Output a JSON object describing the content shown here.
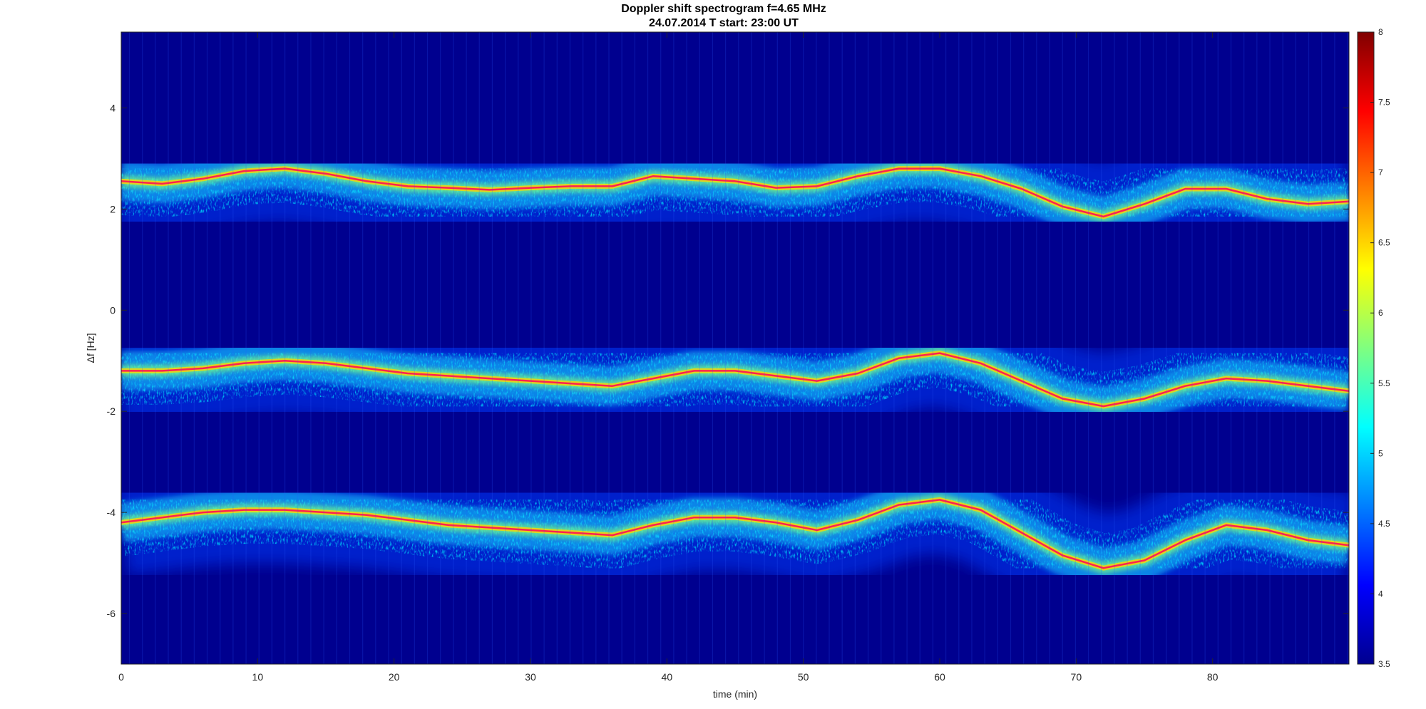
{
  "chart_data": {
    "type": "heatmap",
    "title": "Doppler shift spectrogram f=4.65 MHz",
    "subtitle": "24.07.2014   T start: 23:00 UT",
    "xlabel": "time (min)",
    "ylabel": "Δf [Hz]",
    "xlim": [
      0,
      90
    ],
    "ylim": [
      -7,
      5.5
    ],
    "x_ticks": [
      0,
      10,
      20,
      30,
      40,
      50,
      60,
      70,
      80
    ],
    "y_ticks": [
      -6,
      -4,
      -2,
      0,
      2,
      4
    ],
    "colorbar": {
      "range": [
        3.5,
        8
      ],
      "ticks": [
        3.5,
        4,
        4.5,
        5,
        5.5,
        6,
        6.5,
        7,
        7.5,
        8
      ],
      "colormap": "jet"
    },
    "background_color": "#00008f",
    "series": [
      {
        "x": [
          0,
          3,
          6,
          9,
          12,
          15,
          18,
          21,
          24,
          27,
          30,
          33,
          36,
          39,
          42,
          45,
          48,
          51,
          54,
          57,
          60,
          63,
          66,
          69,
          72,
          75,
          78,
          81,
          84,
          87,
          90
        ],
        "values": [
          2.55,
          2.5,
          2.6,
          2.75,
          2.8,
          2.7,
          2.55,
          2.45,
          2.42,
          2.38,
          2.42,
          2.45,
          2.45,
          2.65,
          2.6,
          2.55,
          2.42,
          2.45,
          2.65,
          2.8,
          2.8,
          2.65,
          2.4,
          2.05,
          1.85,
          2.1,
          2.4,
          2.4,
          2.2,
          2.1,
          2.15
        ]
      },
      {
        "x": [
          0,
          3,
          6,
          9,
          12,
          15,
          18,
          21,
          24,
          27,
          30,
          33,
          36,
          39,
          42,
          45,
          48,
          51,
          54,
          57,
          60,
          63,
          66,
          69,
          72,
          75,
          78,
          81,
          84,
          87,
          90
        ],
        "values": [
          -1.2,
          -1.2,
          -1.15,
          -1.05,
          -1.0,
          -1.05,
          -1.15,
          -1.25,
          -1.3,
          -1.35,
          -1.4,
          -1.45,
          -1.5,
          -1.35,
          -1.2,
          -1.2,
          -1.3,
          -1.4,
          -1.25,
          -0.95,
          -0.85,
          -1.05,
          -1.4,
          -1.75,
          -1.9,
          -1.75,
          -1.5,
          -1.35,
          -1.4,
          -1.5,
          -1.6
        ]
      },
      {
        "x": [
          0,
          3,
          6,
          9,
          12,
          15,
          18,
          21,
          24,
          27,
          30,
          33,
          36,
          39,
          42,
          45,
          48,
          51,
          54,
          57,
          60,
          63,
          66,
          69,
          72,
          75,
          78,
          81,
          84,
          87,
          90
        ],
        "values": [
          -4.2,
          -4.1,
          -4.0,
          -3.95,
          -3.95,
          -4.0,
          -4.05,
          -4.15,
          -4.25,
          -4.3,
          -4.35,
          -4.4,
          -4.45,
          -4.25,
          -4.1,
          -4.1,
          -4.2,
          -4.35,
          -4.15,
          -3.85,
          -3.75,
          -3.95,
          -4.4,
          -4.85,
          -5.1,
          -4.95,
          -4.55,
          -4.25,
          -4.35,
          -4.55,
          -4.65
        ]
      }
    ],
    "tracking_line_color": "#ff2050",
    "marker_line_color": "#000000"
  }
}
